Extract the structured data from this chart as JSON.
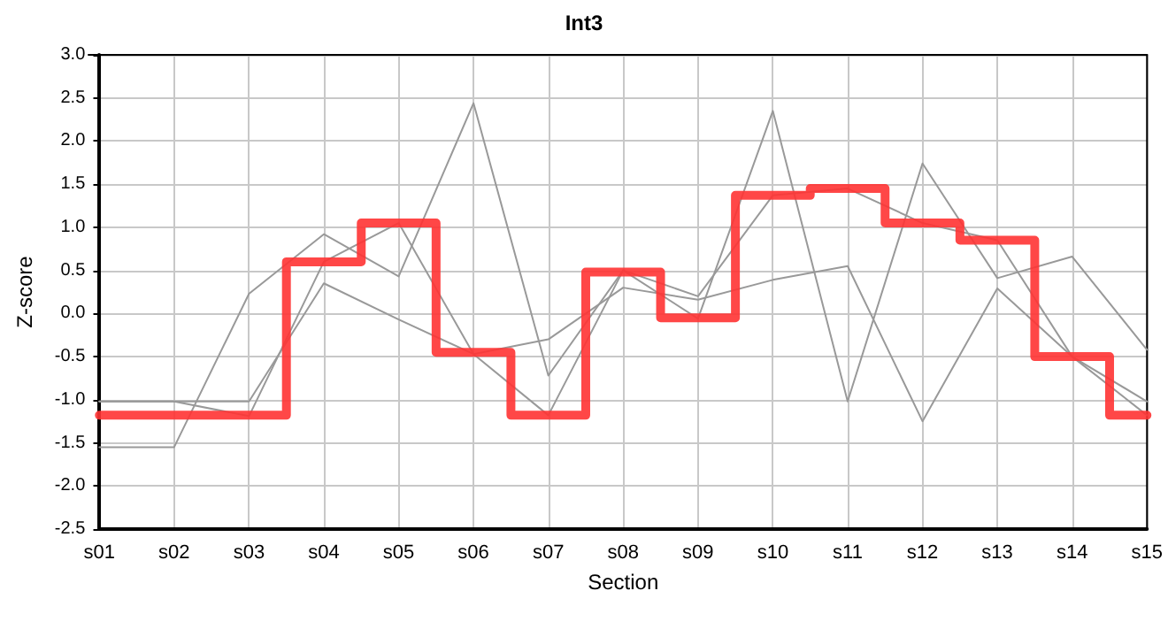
{
  "chart_data": {
    "type": "line",
    "title": "Int3",
    "xlabel": "Section",
    "ylabel": "Z-score",
    "categories": [
      "s01",
      "s02",
      "s03",
      "s04",
      "s05",
      "s06",
      "s07",
      "s08",
      "s09",
      "s10",
      "s11",
      "s12",
      "s13",
      "s14",
      "s15"
    ],
    "series": [
      {
        "color": "#999999",
        "values": [
          -1.02,
          -1.02,
          -1.02,
          0.35,
          -0.07,
          -0.47,
          -0.3,
          0.3,
          0.16,
          0.39,
          0.55,
          -1.25,
          0.29,
          -0.5,
          -1.02
        ]
      },
      {
        "color": "#999999",
        "values": [
          -1.55,
          -1.55,
          0.23,
          0.92,
          0.43,
          2.44,
          -0.72,
          0.5,
          -0.06,
          2.35,
          -1.02,
          1.74,
          0.41,
          0.66,
          -0.42
        ]
      },
      {
        "color": "#999999",
        "values": [
          -1.02,
          -1.02,
          -1.19,
          0.6,
          1.05,
          -0.47,
          -1.18,
          0.5,
          0.2,
          1.37,
          1.45,
          1.05,
          0.85,
          -0.5,
          -1.18
        ]
      },
      {
        "type": "step",
        "color": "#ff3333",
        "values": [
          -1.18,
          -1.18,
          -1.18,
          0.6,
          1.05,
          -0.45,
          -1.18,
          0.48,
          -0.05,
          1.37,
          1.45,
          1.05,
          0.85,
          -0.5,
          -1.18
        ]
      }
    ],
    "ylim": [
      -2.5,
      3
    ],
    "yticks": [
      {
        "value": -2.5,
        "label": "-2.5"
      },
      {
        "value": -2,
        "label": "-2.0"
      },
      {
        "value": -1.5,
        "label": "-1.5"
      },
      {
        "value": -1,
        "label": "-1.0"
      },
      {
        "value": -0.5,
        "label": "-0.5"
      },
      {
        "value": 0,
        "label": "0.0"
      },
      {
        "value": 0.5,
        "label": "0.5"
      },
      {
        "value": 1,
        "label": "1.0"
      },
      {
        "value": 1.5,
        "label": "1.5"
      },
      {
        "value": 2,
        "label": "2.0"
      },
      {
        "value": 2.5,
        "label": "2.5"
      },
      {
        "value": 3,
        "label": "3.0"
      }
    ],
    "grid": true,
    "marker": "none"
  }
}
